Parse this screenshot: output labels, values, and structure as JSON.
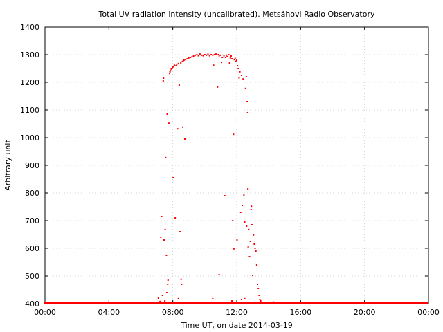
{
  "chart_data": {
    "type": "scatter",
    "title": "Total UV radiation intensity (uncalibrated). Metsähovi Radio Observatory",
    "xlabel": "Time UT, on date 2014-03-19",
    "ylabel": "Arbitrary unit",
    "xlim": [
      0,
      24
    ],
    "ylim": [
      400,
      1400
    ],
    "x_ticks": [
      {
        "value": 0,
        "label": "00:00"
      },
      {
        "value": 4,
        "label": "04:00"
      },
      {
        "value": 8,
        "label": "08:00"
      },
      {
        "value": 12,
        "label": "12:00"
      },
      {
        "value": 16,
        "label": "16:00"
      },
      {
        "value": 20,
        "label": "20:00"
      },
      {
        "value": 24,
        "label": "00:00"
      }
    ],
    "y_ticks": [
      400,
      500,
      600,
      700,
      800,
      900,
      1000,
      1100,
      1200,
      1300,
      1400
    ],
    "grid": true,
    "legend": "none",
    "series": [
      {
        "color": "#ff0000",
        "points": [
          [
            7.1,
            420
          ],
          [
            7.2,
            408
          ],
          [
            7.25,
            640
          ],
          [
            7.3,
            715
          ],
          [
            7.32,
            405
          ],
          [
            7.35,
            430
          ],
          [
            7.4,
            1205
          ],
          [
            7.42,
            1215
          ],
          [
            7.45,
            630
          ],
          [
            7.5,
            410
          ],
          [
            7.52,
            668
          ],
          [
            7.55,
            928
          ],
          [
            7.6,
            575
          ],
          [
            7.62,
            440
          ],
          [
            7.65,
            1085
          ],
          [
            7.68,
            470
          ],
          [
            7.7,
            485
          ],
          [
            7.72,
            405
          ],
          [
            7.75,
            1052
          ],
          [
            7.8,
            1232
          ],
          [
            7.82,
            1238
          ],
          [
            7.85,
            1242
          ],
          [
            7.9,
            1248
          ],
          [
            7.95,
            1250
          ],
          [
            8.0,
            1255
          ],
          [
            8.02,
            855
          ],
          [
            8.05,
            1258
          ],
          [
            8.1,
            1262
          ],
          [
            8.15,
            710
          ],
          [
            8.2,
            1260
          ],
          [
            8.25,
            1265
          ],
          [
            8.3,
            1032
          ],
          [
            8.35,
            1268
          ],
          [
            8.4,
            1190
          ],
          [
            8.45,
            660
          ],
          [
            8.5,
            1270
          ],
          [
            8.52,
            488
          ],
          [
            8.55,
            470
          ],
          [
            8.6,
            1275
          ],
          [
            8.62,
            1038
          ],
          [
            8.65,
            1278
          ],
          [
            8.7,
            1280
          ],
          [
            8.75,
            995
          ],
          [
            8.8,
            1282
          ],
          [
            8.9,
            1285
          ],
          [
            9.0,
            1288
          ],
          [
            9.1,
            1290
          ],
          [
            9.2,
            1292
          ],
          [
            9.3,
            1295
          ],
          [
            9.4,
            1298
          ],
          [
            9.5,
            1300
          ],
          [
            9.6,
            1296
          ],
          [
            9.7,
            1302
          ],
          [
            9.8,
            1298
          ],
          [
            9.9,
            1296
          ],
          [
            10.0,
            1300
          ],
          [
            10.1,
            1298
          ],
          [
            10.2,
            1302
          ],
          [
            10.3,
            1296
          ],
          [
            10.4,
            1300
          ],
          [
            10.5,
            1298
          ],
          [
            10.55,
            1262
          ],
          [
            10.6,
            1300
          ],
          [
            10.7,
            1302
          ],
          [
            10.8,
            1183
          ],
          [
            10.85,
            1300
          ],
          [
            10.9,
            1296
          ],
          [
            11.0,
            1298
          ],
          [
            11.05,
            1272
          ],
          [
            11.1,
            1290
          ],
          [
            11.2,
            1296
          ],
          [
            11.25,
            790
          ],
          [
            11.3,
            1290
          ],
          [
            11.35,
            1298
          ],
          [
            11.4,
            1293
          ],
          [
            11.5,
            1300
          ],
          [
            11.55,
            1270
          ],
          [
            11.6,
            1288
          ],
          [
            11.65,
            1295
          ],
          [
            11.7,
            1285
          ],
          [
            11.75,
            700
          ],
          [
            11.8,
            1012
          ],
          [
            11.82,
            598
          ],
          [
            11.85,
            1282
          ],
          [
            11.9,
            1286
          ],
          [
            11.95,
            1276
          ],
          [
            12.0,
            1280
          ],
          [
            12.02,
            630
          ],
          [
            12.05,
            1260
          ],
          [
            12.1,
            1250
          ],
          [
            12.15,
            1216
          ],
          [
            12.2,
            1238
          ],
          [
            12.25,
            730
          ],
          [
            12.3,
            1225
          ],
          [
            12.35,
            755
          ],
          [
            12.4,
            1212
          ],
          [
            12.45,
            792
          ],
          [
            12.5,
            695
          ],
          [
            12.55,
            1178
          ],
          [
            12.6,
            1220
          ],
          [
            12.62,
            680
          ],
          [
            12.65,
            1130
          ],
          [
            12.68,
            1090
          ],
          [
            12.7,
            815
          ],
          [
            12.72,
            605
          ],
          [
            12.75,
            668
          ],
          [
            12.8,
            570
          ],
          [
            12.85,
            625
          ],
          [
            12.9,
            740
          ],
          [
            12.92,
            752
          ],
          [
            12.95,
            685
          ],
          [
            13.0,
            502
          ],
          [
            13.05,
            648
          ],
          [
            13.1,
            615
          ],
          [
            13.15,
            600
          ],
          [
            13.2,
            590
          ],
          [
            13.25,
            540
          ],
          [
            13.3,
            470
          ],
          [
            13.35,
            455
          ],
          [
            13.4,
            430
          ],
          [
            13.45,
            415
          ],
          [
            13.5,
            410
          ],
          [
            13.6,
            405
          ],
          [
            14.0,
            404
          ],
          [
            14.3,
            406
          ],
          [
            14.5,
            402
          ],
          [
            15.5,
            401
          ],
          [
            10.5,
            418
          ],
          [
            10.9,
            505
          ],
          [
            8.35,
            418
          ],
          [
            7.35,
            402
          ],
          [
            11.7,
            410
          ],
          [
            12.1,
            402
          ],
          [
            12.3,
            415
          ],
          [
            12.5,
            418
          ]
        ]
      }
    ]
  }
}
